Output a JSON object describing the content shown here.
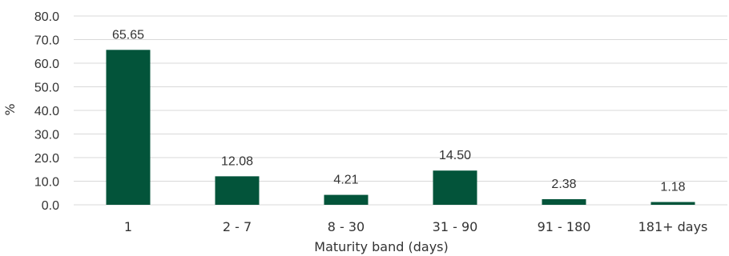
{
  "chart_data": {
    "type": "bar",
    "title": "",
    "xlabel": "Maturity band (days)",
    "ylabel": "%",
    "categories": [
      "1",
      "2 - 7",
      "8 - 30",
      "31 - 90",
      "91 - 180",
      "181+ days"
    ],
    "values": [
      65.65,
      12.08,
      4.21,
      14.5,
      2.38,
      1.18
    ],
    "value_labels": [
      "65.65",
      "12.08",
      "4.21",
      "14.50",
      "2.38",
      "1.18"
    ],
    "ylim": [
      0,
      80
    ],
    "yticks": [
      "0.0",
      "10.0",
      "20.0",
      "30.0",
      "40.0",
      "50.0",
      "60.0",
      "70.0",
      "80.0"
    ],
    "grid": true,
    "bar_color": "#03543a",
    "grid_color": "#d9d9d9"
  }
}
